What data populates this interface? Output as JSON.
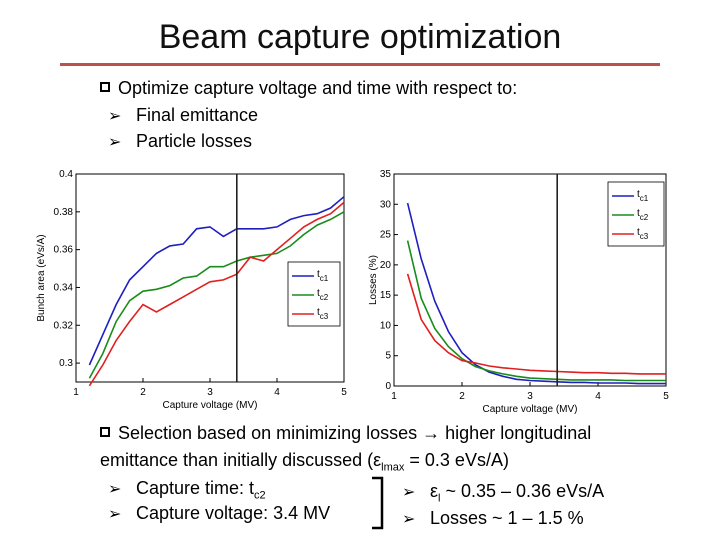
{
  "slide": {
    "title": "Beam capture optimization",
    "bullet1": {
      "text": "Optimize capture voltage and time with respect to:",
      "subs": [
        "Final emittance",
        "Particle losses"
      ]
    },
    "bullet2": {
      "line1_a": "Selection based on minimizing losses ",
      "line1_arrow": "→",
      "line1_b": " higher longitudinal",
      "line2_a": "emittance than initially discussed (ε",
      "line2_sub": "lmax",
      "line2_b": " = 0.3 eVs/A)",
      "sub1_a": "Capture time: t",
      "sub1_sub": "c2",
      "sub2": "Capture voltage: 3.4 MV",
      "res1_a": "ε",
      "res1_sub": "l",
      "res1_b": " ~ 0.35 – 0.36 eVs/A",
      "res2": "Losses ~ 1 – 1.5 %"
    },
    "arrow_glyph": "➢",
    "accent_color": "#c0504d"
  },
  "chart_data": [
    {
      "type": "line",
      "title": "",
      "xlabel": "Capture voltage (MV)",
      "ylabel": "Bunch area (eVs/A)",
      "xlim": [
        1,
        5
      ],
      "ylim": [
        0.29,
        0.4
      ],
      "xticks": [
        "1",
        "2",
        "3",
        "4",
        "5"
      ],
      "yticks": [
        "0.3",
        "0.32",
        "0.34",
        "0.36",
        "0.38",
        "0.4"
      ],
      "selected_voltage": 3.4,
      "x": [
        1.2,
        1.4,
        1.6,
        1.8,
        2.0,
        2.2,
        2.4,
        2.6,
        2.8,
        3.0,
        3.2,
        3.4,
        3.6,
        3.8,
        4.0,
        4.2,
        4.4,
        4.6,
        4.8,
        5.0
      ],
      "series": [
        {
          "name": "t",
          "sub": "c1",
          "color": "#1f1fbf",
          "values": [
            0.299,
            0.315,
            0.331,
            0.344,
            0.351,
            0.358,
            0.362,
            0.363,
            0.371,
            0.372,
            0.367,
            0.371,
            0.371,
            0.371,
            0.372,
            0.376,
            0.378,
            0.379,
            0.382,
            0.388
          ]
        },
        {
          "name": "t",
          "sub": "c2",
          "color": "#1a8c1a",
          "values": [
            0.292,
            0.305,
            0.322,
            0.333,
            0.338,
            0.339,
            0.341,
            0.345,
            0.346,
            0.351,
            0.351,
            0.354,
            0.356,
            0.357,
            0.358,
            0.362,
            0.368,
            0.373,
            0.376,
            0.38
          ]
        },
        {
          "name": "t",
          "sub": "c3",
          "color": "#e02020",
          "values": [
            0.288,
            0.299,
            0.312,
            0.322,
            0.331,
            0.327,
            0.331,
            0.335,
            0.339,
            0.343,
            0.344,
            0.347,
            0.356,
            0.354,
            0.36,
            0.366,
            0.372,
            0.376,
            0.379,
            0.385
          ]
        }
      ]
    },
    {
      "type": "line",
      "title": "",
      "xlabel": "Capture voltage (MV)",
      "ylabel": "Losses (%)",
      "xlim": [
        1,
        5
      ],
      "ylim": [
        0,
        35
      ],
      "xticks": [
        "1",
        "2",
        "3",
        "4",
        "5"
      ],
      "yticks": [
        "0",
        "5",
        "10",
        "15",
        "20",
        "25",
        "30",
        "35"
      ],
      "selected_voltage": 3.4,
      "x": [
        1.2,
        1.4,
        1.6,
        1.8,
        2.0,
        2.2,
        2.4,
        2.6,
        2.8,
        3.0,
        3.2,
        3.4,
        3.6,
        3.8,
        4.0,
        4.2,
        4.4,
        4.6,
        4.8,
        5.0
      ],
      "series": [
        {
          "name": "t",
          "sub": "c1",
          "color": "#1f1fbf",
          "values": [
            30.2,
            21.0,
            14.0,
            9.0,
            5.5,
            3.5,
            2.3,
            1.6,
            1.1,
            0.9,
            0.8,
            0.7,
            0.6,
            0.6,
            0.5,
            0.5,
            0.5,
            0.4,
            0.4,
            0.4
          ]
        },
        {
          "name": "t",
          "sub": "c2",
          "color": "#1a8c1a",
          "values": [
            24.0,
            14.5,
            9.5,
            6.5,
            4.5,
            3.2,
            2.5,
            2.0,
            1.6,
            1.3,
            1.2,
            1.1,
            1.0,
            1.0,
            1.0,
            1.0,
            0.9,
            0.9,
            0.9,
            0.9
          ]
        },
        {
          "name": "t",
          "sub": "c3",
          "color": "#e02020",
          "values": [
            18.5,
            11.0,
            7.5,
            5.5,
            4.2,
            3.8,
            3.3,
            3.0,
            2.8,
            2.6,
            2.5,
            2.4,
            2.3,
            2.2,
            2.2,
            2.1,
            2.1,
            2.0,
            2.0,
            2.0
          ]
        }
      ]
    }
  ]
}
